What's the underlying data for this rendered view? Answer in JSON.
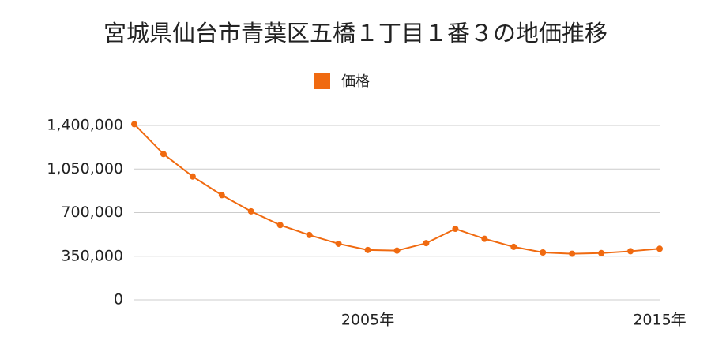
{
  "chart_data": {
    "type": "line",
    "title": "宮城県仙台市青葉区五橋１丁目１番３の地価推移",
    "categories": [
      null,
      null,
      null,
      null,
      null,
      null,
      null,
      null,
      "2005年",
      null,
      null,
      null,
      null,
      null,
      null,
      null,
      null,
      null,
      "2015年"
    ],
    "series": [
      {
        "name": "価格",
        "color": "#f06a10",
        "values": [
          1410000,
          1170000,
          990000,
          840000,
          710000,
          600000,
          520000,
          450000,
          400000,
          395000,
          455000,
          570000,
          490000,
          425000,
          380000,
          370000,
          375000,
          390000,
          410000
        ]
      }
    ],
    "ylim": [
      0,
      1400000
    ],
    "yticks": [
      0,
      {
        "value": 350000,
        "label": "350,000"
      },
      {
        "value": 700000,
        "label": "700,000"
      },
      {
        "value": 1050000,
        "label": "1,050,000"
      },
      {
        "value": 1400000,
        "label": "1,400,000"
      }
    ],
    "grid": true,
    "legend": "top"
  }
}
